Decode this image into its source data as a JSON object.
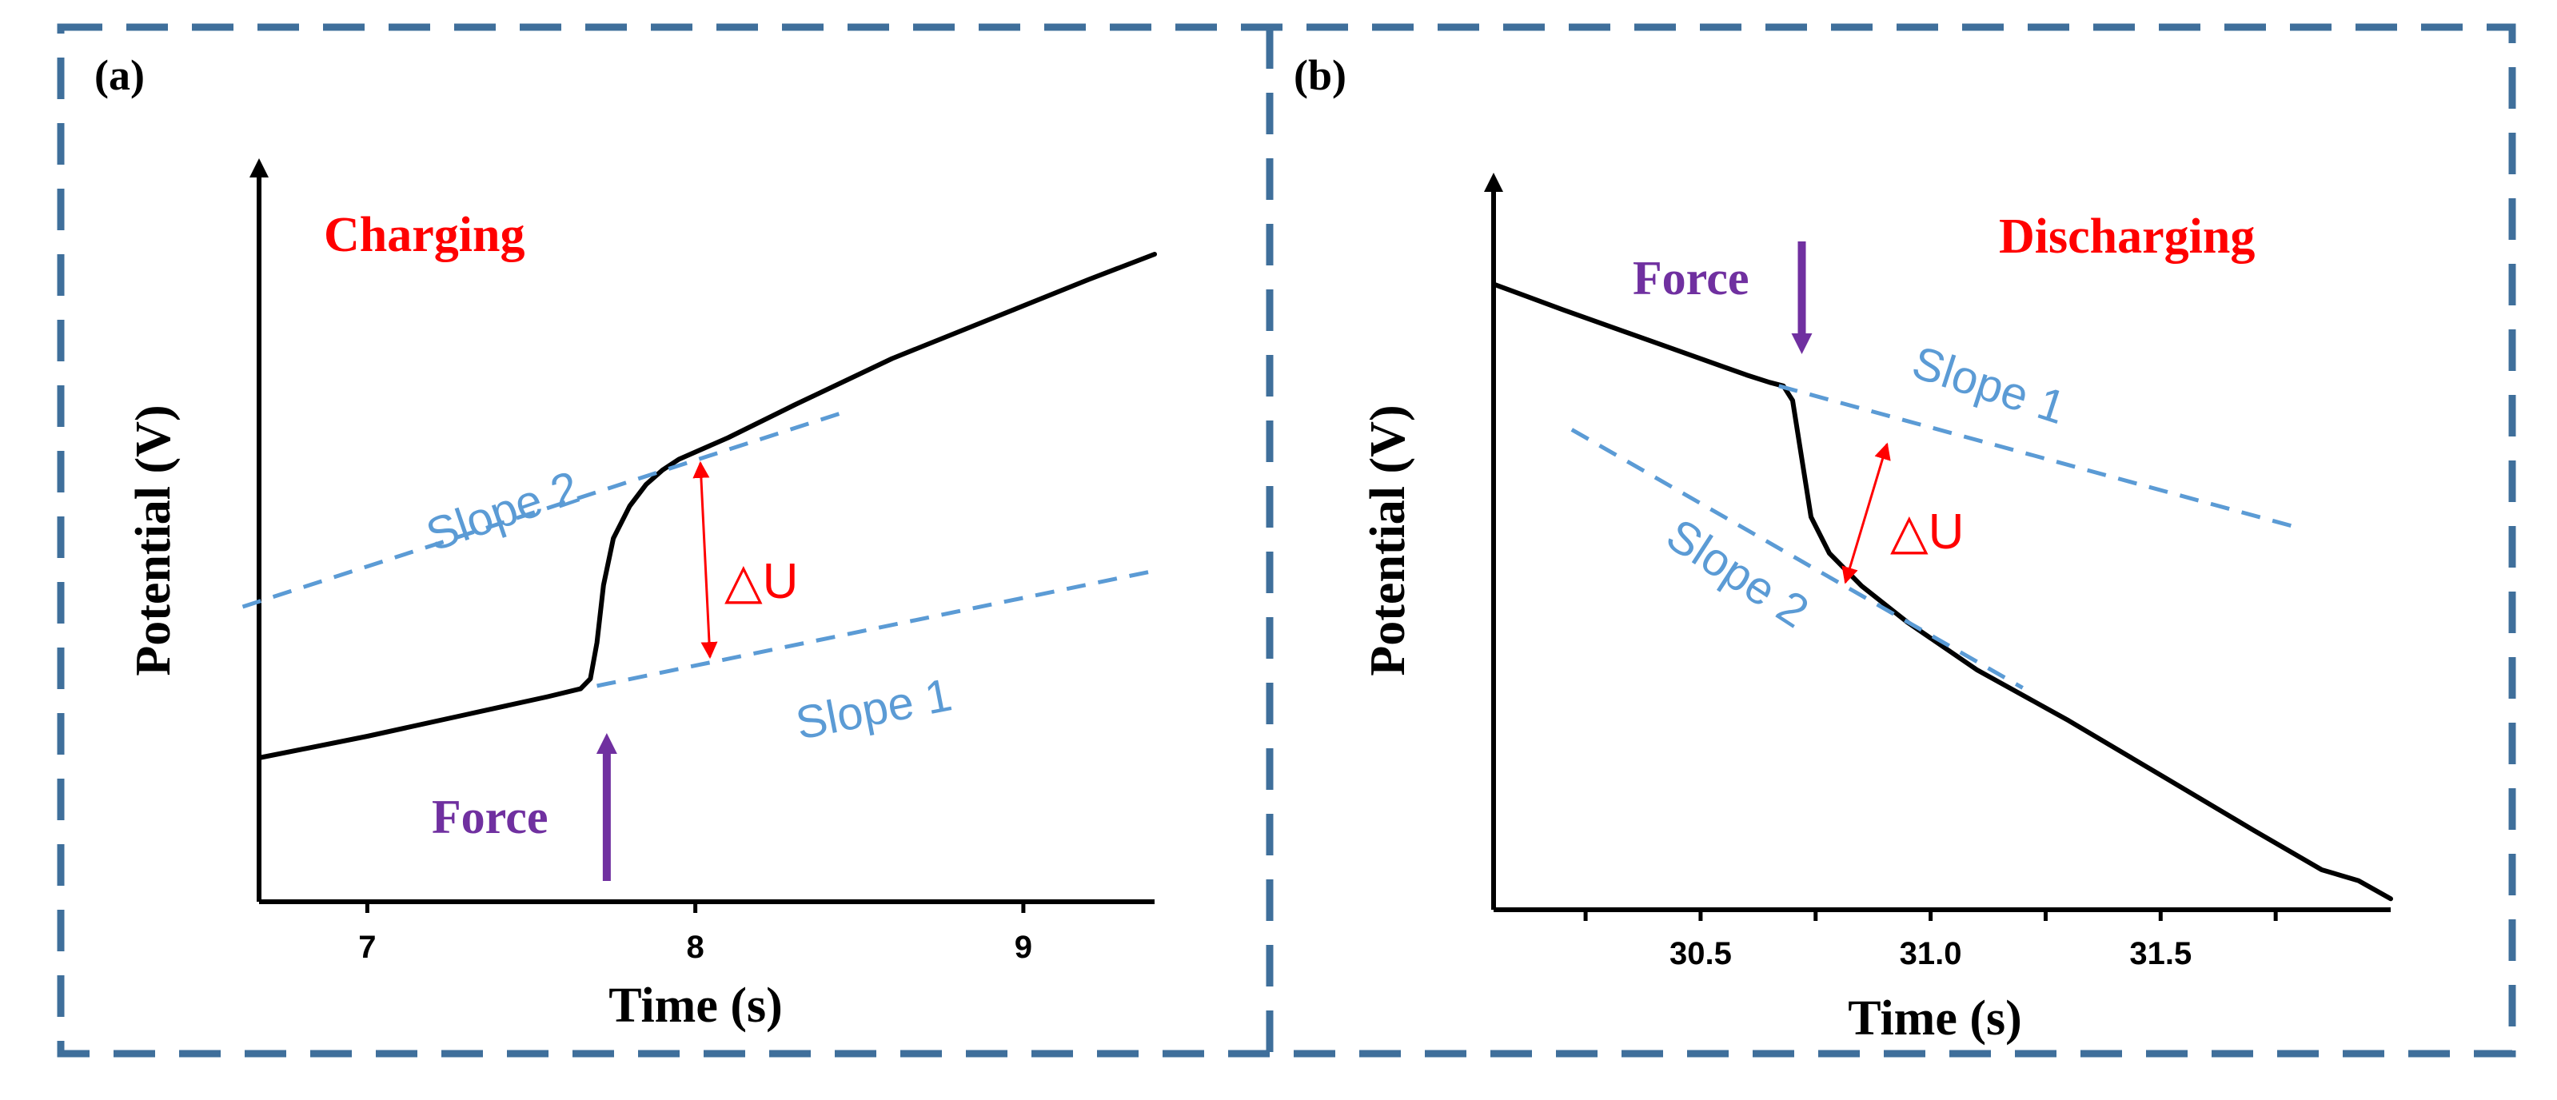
{
  "colors": {
    "frame": "#3f6f9b",
    "curve": "#000000",
    "slope": "#5b9bd5",
    "delta": "#ff0000",
    "force": "#7030a0",
    "state": "#ff0000",
    "axis": "#000000"
  },
  "chart_data": [
    {
      "panel_label": "(a)",
      "type": "line",
      "title": "Charging",
      "xlabel": "Time (s)",
      "ylabel": "Potential (V)",
      "xlim": [
        6.67,
        9.4
      ],
      "ylim": [
        0,
        100
      ],
      "xticks": [
        7,
        8,
        9
      ],
      "xtick_labels": [
        "7",
        "8",
        "9"
      ],
      "grid": false,
      "series": [
        {
          "name": "Potential",
          "x": [
            6.67,
            7.0,
            7.3,
            7.55,
            7.65,
            7.68,
            7.7,
            7.72,
            7.75,
            7.8,
            7.85,
            7.9,
            7.95,
            8.0,
            8.1,
            8.3,
            8.6,
            8.9,
            9.2,
            9.4
          ],
          "y": [
            20.0,
            23.0,
            26.0,
            28.5,
            29.6,
            31.0,
            36.0,
            44.0,
            50.5,
            55.0,
            58.0,
            60.0,
            61.5,
            62.5,
            64.5,
            69.0,
            75.5,
            81.0,
            86.5,
            90.0
          ]
        }
      ],
      "dashed_lines": [
        {
          "name": "Slope 2",
          "x": [
            6.62,
            8.45
          ],
          "y": [
            41.0,
            68.0
          ]
        },
        {
          "name": "Slope 1",
          "x": [
            7.7,
            9.4
          ],
          "y": [
            30.0,
            46.0
          ]
        }
      ],
      "annotations": {
        "force_label": "Force",
        "force_x": 7.73,
        "delta_label": "△U",
        "delta_x": 8.03,
        "delta_y_top": 61.0,
        "delta_y_bottom": 34.0,
        "slope_labels": [
          "Slope 2",
          "Slope 1"
        ]
      }
    },
    {
      "panel_label": "(b)",
      "type": "line",
      "title": "Discharging",
      "xlabel": "Time (s)",
      "ylabel": "Potential (V)",
      "xlim": [
        30.05,
        32.0
      ],
      "ylim": [
        0,
        100
      ],
      "xticks": [
        30.25,
        30.5,
        30.75,
        31.0,
        31.25,
        31.5,
        31.75
      ],
      "xtick_labels": [
        "",
        "30.5",
        "",
        "31.0",
        "",
        "31.5",
        ""
      ],
      "grid": false,
      "series": [
        {
          "name": "Potential",
          "x": [
            30.05,
            30.2,
            30.4,
            30.6,
            30.65,
            30.68,
            30.7,
            30.72,
            30.74,
            30.78,
            30.85,
            30.95,
            31.1,
            31.3,
            31.5,
            31.7,
            31.85,
            31.93,
            32.0
          ],
          "y": [
            86.0,
            82.5,
            78.0,
            73.5,
            72.5,
            72.0,
            70.0,
            62.0,
            54.0,
            49.0,
            44.5,
            39.5,
            33.0,
            26.0,
            18.5,
            11.0,
            5.5,
            4.0,
            1.5
          ]
        }
      ],
      "dashed_lines": [
        {
          "name": "Slope 1",
          "x": [
            30.67,
            31.8
          ],
          "y": [
            72.0,
            52.5
          ]
        },
        {
          "name": "Slope 2",
          "x": [
            30.22,
            31.2
          ],
          "y": [
            66.0,
            30.5
          ]
        }
      ],
      "annotations": {
        "force_label": "Force",
        "force_x": 30.72,
        "delta_label": "△U",
        "delta_x": 30.86,
        "delta_y_top": 64.0,
        "delta_y_bottom": 45.0,
        "slope_labels": [
          "Slope 1",
          "Slope 2"
        ]
      }
    }
  ]
}
